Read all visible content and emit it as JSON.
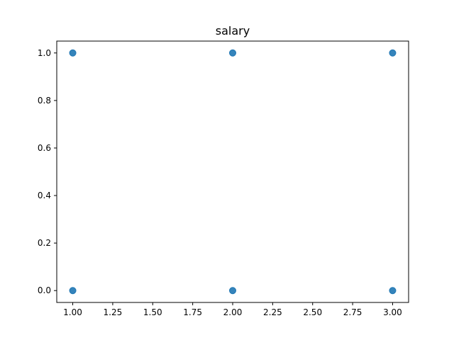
{
  "chart_data": {
    "type": "scatter",
    "title": "salary",
    "xlabel": "",
    "ylabel": "",
    "xlim": [
      0.9,
      3.1
    ],
    "ylim": [
      -0.05,
      1.05
    ],
    "xticks": [
      1.0,
      1.25,
      1.5,
      1.75,
      2.0,
      2.25,
      2.5,
      2.75,
      3.0
    ],
    "xtick_labels": [
      "1.00",
      "1.25",
      "1.50",
      "1.75",
      "2.00",
      "2.25",
      "2.50",
      "2.75",
      "3.00"
    ],
    "yticks": [
      0.0,
      0.2,
      0.4,
      0.6,
      0.8,
      1.0
    ],
    "ytick_labels": [
      "0.0",
      "0.2",
      "0.4",
      "0.6",
      "0.8",
      "1.0"
    ],
    "grid": false,
    "legend": "none",
    "series": [
      {
        "color": "#1f77b4",
        "points": [
          {
            "x": 1,
            "y": 1
          },
          {
            "x": 2,
            "y": 1
          },
          {
            "x": 3,
            "y": 1
          },
          {
            "x": 1,
            "y": 0
          },
          {
            "x": 2,
            "y": 0
          },
          {
            "x": 3,
            "y": 0
          }
        ]
      }
    ]
  }
}
